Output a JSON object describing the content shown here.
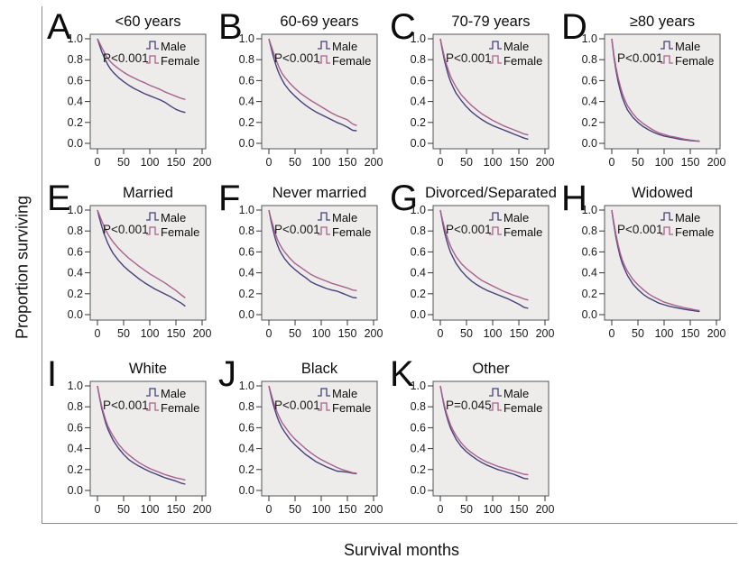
{
  "figure": {
    "ylabel": "Proportion surviving",
    "xlabel": "Survival months",
    "legend": {
      "male_label": "Male",
      "female_label": "Female"
    },
    "colors": {
      "male": "#45427a",
      "female": "#a8618e",
      "plot_bg": "#edecea",
      "plot_border": "#555555",
      "frame": "#8c8c8c",
      "text": "#1a1a1a"
    }
  },
  "chart_data": [
    {
      "type": "line",
      "panel": "A",
      "title": "<60 years",
      "p_value": "P<0.001",
      "xlabel": "Survival months",
      "ylabel": "Proportion surviving",
      "xticks": [
        0,
        50,
        100,
        150,
        200
      ],
      "yticks": [
        1.0,
        0.8,
        0.6,
        0.4,
        0.2,
        0.0
      ],
      "xlim": [
        0,
        207
      ],
      "ylim": [
        0,
        1
      ],
      "legend_position": "top-right",
      "grid": false,
      "x": [
        0,
        4,
        8,
        12,
        16,
        20,
        25,
        30,
        40,
        50,
        60,
        70,
        80,
        90,
        100,
        110,
        120,
        130,
        140,
        150,
        160,
        168
      ],
      "series": [
        {
          "name": "Male",
          "values": [
            1.0,
            0.94,
            0.88,
            0.83,
            0.79,
            0.75,
            0.71,
            0.68,
            0.63,
            0.59,
            0.555,
            0.525,
            0.5,
            0.475,
            0.455,
            0.435,
            0.415,
            0.39,
            0.355,
            0.325,
            0.305,
            0.295
          ]
        },
        {
          "name": "Female",
          "values": [
            1.0,
            0.96,
            0.92,
            0.88,
            0.84,
            0.81,
            0.78,
            0.755,
            0.715,
            0.68,
            0.65,
            0.625,
            0.6,
            0.58,
            0.555,
            0.535,
            0.515,
            0.49,
            0.47,
            0.45,
            0.43,
            0.42
          ]
        }
      ]
    },
    {
      "type": "line",
      "panel": "B",
      "title": "60-69 years",
      "p_value": "P<0.001",
      "xticks": [
        0,
        50,
        100,
        150,
        200
      ],
      "yticks": [
        1.0,
        0.8,
        0.6,
        0.4,
        0.2,
        0.0
      ],
      "xlim": [
        0,
        207
      ],
      "ylim": [
        0,
        1
      ],
      "legend_position": "top-right",
      "grid": false,
      "x": [
        0,
        4,
        8,
        12,
        16,
        20,
        25,
        30,
        40,
        50,
        60,
        70,
        80,
        90,
        100,
        110,
        120,
        130,
        140,
        150,
        160,
        168
      ],
      "series": [
        {
          "name": "Male",
          "values": [
            1.0,
            0.92,
            0.84,
            0.77,
            0.71,
            0.66,
            0.61,
            0.565,
            0.5,
            0.45,
            0.405,
            0.365,
            0.33,
            0.3,
            0.275,
            0.25,
            0.225,
            0.2,
            0.18,
            0.155,
            0.125,
            0.12
          ]
        },
        {
          "name": "Female",
          "values": [
            1.0,
            0.94,
            0.88,
            0.82,
            0.77,
            0.72,
            0.67,
            0.635,
            0.575,
            0.525,
            0.48,
            0.445,
            0.41,
            0.38,
            0.35,
            0.32,
            0.29,
            0.265,
            0.245,
            0.225,
            0.185,
            0.17
          ]
        }
      ]
    },
    {
      "type": "line",
      "panel": "C",
      "title": "70-79 years",
      "p_value": "P<0.001",
      "xticks": [
        0,
        50,
        100,
        150,
        200
      ],
      "yticks": [
        1.0,
        0.8,
        0.6,
        0.4,
        0.2,
        0.0
      ],
      "xlim": [
        0,
        207
      ],
      "ylim": [
        0,
        1
      ],
      "legend_position": "top-right",
      "grid": false,
      "x": [
        0,
        4,
        8,
        12,
        16,
        20,
        25,
        30,
        40,
        50,
        60,
        70,
        80,
        90,
        100,
        110,
        120,
        130,
        140,
        150,
        160,
        168
      ],
      "series": [
        {
          "name": "Male",
          "values": [
            1.0,
            0.89,
            0.79,
            0.71,
            0.64,
            0.585,
            0.53,
            0.48,
            0.41,
            0.35,
            0.3,
            0.26,
            0.225,
            0.195,
            0.17,
            0.15,
            0.13,
            0.11,
            0.09,
            0.07,
            0.05,
            0.04
          ]
        },
        {
          "name": "Female",
          "values": [
            1.0,
            0.91,
            0.82,
            0.75,
            0.69,
            0.635,
            0.585,
            0.54,
            0.465,
            0.41,
            0.36,
            0.32,
            0.28,
            0.25,
            0.22,
            0.195,
            0.17,
            0.15,
            0.13,
            0.11,
            0.09,
            0.08
          ]
        }
      ]
    },
    {
      "type": "line",
      "panel": "D",
      "title": "≥80 years",
      "p_value": "P<0.001",
      "xticks": [
        0,
        50,
        100,
        150,
        200
      ],
      "yticks": [
        1.0,
        0.8,
        0.6,
        0.4,
        0.2,
        0.0
      ],
      "xlim": [
        0,
        207
      ],
      "ylim": [
        0,
        1
      ],
      "legend_position": "top-right",
      "grid": false,
      "x": [
        0,
        4,
        8,
        12,
        16,
        20,
        25,
        30,
        40,
        50,
        60,
        70,
        80,
        90,
        100,
        110,
        120,
        130,
        140,
        150,
        160,
        168
      ],
      "series": [
        {
          "name": "Male",
          "values": [
            1.0,
            0.83,
            0.7,
            0.59,
            0.51,
            0.44,
            0.375,
            0.32,
            0.25,
            0.2,
            0.16,
            0.13,
            0.105,
            0.085,
            0.07,
            0.06,
            0.05,
            0.04,
            0.033,
            0.027,
            0.022,
            0.02
          ]
        },
        {
          "name": "Female",
          "values": [
            1.0,
            0.85,
            0.73,
            0.63,
            0.55,
            0.48,
            0.415,
            0.36,
            0.285,
            0.23,
            0.19,
            0.155,
            0.125,
            0.1,
            0.085,
            0.07,
            0.06,
            0.05,
            0.04,
            0.032,
            0.025,
            0.022
          ]
        }
      ]
    },
    {
      "type": "line",
      "panel": "E",
      "title": "Married",
      "p_value": "P<0.001",
      "xticks": [
        0,
        50,
        100,
        150,
        200
      ],
      "yticks": [
        1.0,
        0.8,
        0.6,
        0.4,
        0.2,
        0.0
      ],
      "xlim": [
        0,
        207
      ],
      "ylim": [
        0,
        1
      ],
      "legend_position": "top-right",
      "grid": false,
      "x": [
        0,
        4,
        8,
        12,
        16,
        20,
        25,
        30,
        40,
        50,
        60,
        70,
        80,
        90,
        100,
        110,
        120,
        130,
        140,
        150,
        160,
        168
      ],
      "series": [
        {
          "name": "Male",
          "values": [
            1.0,
            0.92,
            0.85,
            0.78,
            0.73,
            0.68,
            0.63,
            0.585,
            0.52,
            0.465,
            0.42,
            0.38,
            0.34,
            0.305,
            0.275,
            0.245,
            0.22,
            0.195,
            0.17,
            0.14,
            0.11,
            0.08
          ]
        },
        {
          "name": "Female",
          "values": [
            1.0,
            0.95,
            0.9,
            0.85,
            0.81,
            0.77,
            0.73,
            0.695,
            0.635,
            0.585,
            0.54,
            0.5,
            0.46,
            0.425,
            0.39,
            0.36,
            0.33,
            0.3,
            0.265,
            0.23,
            0.19,
            0.16
          ]
        }
      ]
    },
    {
      "type": "line",
      "panel": "F",
      "title": "Never married",
      "p_value": "P<0.001",
      "xticks": [
        0,
        50,
        100,
        150,
        200
      ],
      "yticks": [
        1.0,
        0.8,
        0.6,
        0.4,
        0.2,
        0.0
      ],
      "xlim": [
        0,
        207
      ],
      "ylim": [
        0,
        1
      ],
      "legend_position": "top-right",
      "grid": false,
      "x": [
        0,
        4,
        8,
        12,
        16,
        20,
        25,
        30,
        40,
        50,
        60,
        70,
        80,
        90,
        100,
        110,
        120,
        130,
        140,
        150,
        160,
        168
      ],
      "series": [
        {
          "name": "Male",
          "values": [
            1.0,
            0.9,
            0.81,
            0.73,
            0.67,
            0.62,
            0.575,
            0.535,
            0.475,
            0.43,
            0.39,
            0.355,
            0.315,
            0.29,
            0.27,
            0.25,
            0.235,
            0.225,
            0.205,
            0.185,
            0.165,
            0.16
          ]
        },
        {
          "name": "Female",
          "values": [
            1.0,
            0.92,
            0.85,
            0.78,
            0.72,
            0.68,
            0.635,
            0.6,
            0.54,
            0.49,
            0.455,
            0.42,
            0.385,
            0.36,
            0.34,
            0.32,
            0.3,
            0.285,
            0.27,
            0.255,
            0.235,
            0.23
          ]
        }
      ]
    },
    {
      "type": "line",
      "panel": "G",
      "title": "Divorced/Separated",
      "p_value": "P<0.001",
      "xticks": [
        0,
        50,
        100,
        150,
        200
      ],
      "yticks": [
        1.0,
        0.8,
        0.6,
        0.4,
        0.2,
        0.0
      ],
      "xlim": [
        0,
        207
      ],
      "ylim": [
        0,
        1
      ],
      "legend_position": "top-right",
      "grid": false,
      "x": [
        0,
        4,
        8,
        12,
        16,
        20,
        25,
        30,
        40,
        50,
        60,
        70,
        80,
        90,
        100,
        110,
        120,
        130,
        140,
        150,
        160,
        168
      ],
      "series": [
        {
          "name": "Male",
          "values": [
            1.0,
            0.89,
            0.79,
            0.71,
            0.645,
            0.59,
            0.54,
            0.49,
            0.42,
            0.365,
            0.32,
            0.285,
            0.255,
            0.23,
            0.21,
            0.19,
            0.17,
            0.15,
            0.125,
            0.1,
            0.07,
            0.06
          ]
        },
        {
          "name": "Female",
          "values": [
            1.0,
            0.91,
            0.83,
            0.76,
            0.7,
            0.65,
            0.6,
            0.555,
            0.49,
            0.44,
            0.4,
            0.36,
            0.325,
            0.3,
            0.275,
            0.25,
            0.225,
            0.205,
            0.185,
            0.17,
            0.15,
            0.14
          ]
        }
      ]
    },
    {
      "type": "line",
      "panel": "H",
      "title": "Widowed",
      "p_value": "P<0.001",
      "xticks": [
        0,
        50,
        100,
        150,
        200
      ],
      "yticks": [
        1.0,
        0.8,
        0.6,
        0.4,
        0.2,
        0.0
      ],
      "xlim": [
        0,
        207
      ],
      "ylim": [
        0,
        1
      ],
      "legend_position": "top-right",
      "grid": false,
      "x": [
        0,
        4,
        8,
        12,
        16,
        20,
        25,
        30,
        40,
        50,
        60,
        70,
        80,
        90,
        100,
        110,
        120,
        130,
        140,
        150,
        160,
        168
      ],
      "series": [
        {
          "name": "Male",
          "values": [
            1.0,
            0.86,
            0.74,
            0.64,
            0.555,
            0.49,
            0.43,
            0.375,
            0.295,
            0.24,
            0.195,
            0.16,
            0.135,
            0.11,
            0.095,
            0.08,
            0.07,
            0.06,
            0.05,
            0.042,
            0.035,
            0.03
          ]
        },
        {
          "name": "Female",
          "values": [
            1.0,
            0.88,
            0.77,
            0.67,
            0.59,
            0.525,
            0.465,
            0.415,
            0.34,
            0.285,
            0.24,
            0.2,
            0.17,
            0.145,
            0.12,
            0.105,
            0.09,
            0.078,
            0.065,
            0.055,
            0.045,
            0.04
          ]
        }
      ]
    },
    {
      "type": "line",
      "panel": "I",
      "title": "White",
      "p_value": "P<0.001",
      "xticks": [
        0,
        50,
        100,
        150,
        200
      ],
      "yticks": [
        1.0,
        0.8,
        0.6,
        0.4,
        0.2,
        0.0
      ],
      "xlim": [
        0,
        207
      ],
      "ylim": [
        0,
        1
      ],
      "legend_position": "top-right",
      "grid": false,
      "x": [
        0,
        4,
        8,
        12,
        16,
        20,
        25,
        30,
        40,
        50,
        60,
        70,
        80,
        90,
        100,
        110,
        120,
        130,
        140,
        150,
        160,
        168
      ],
      "series": [
        {
          "name": "Male",
          "values": [
            1.0,
            0.89,
            0.79,
            0.71,
            0.64,
            0.585,
            0.53,
            0.48,
            0.405,
            0.345,
            0.295,
            0.26,
            0.23,
            0.205,
            0.18,
            0.16,
            0.14,
            0.12,
            0.105,
            0.09,
            0.07,
            0.06
          ]
        },
        {
          "name": "Female",
          "values": [
            1.0,
            0.9,
            0.81,
            0.735,
            0.67,
            0.615,
            0.565,
            0.52,
            0.445,
            0.385,
            0.34,
            0.3,
            0.265,
            0.235,
            0.21,
            0.19,
            0.17,
            0.15,
            0.135,
            0.12,
            0.11,
            0.1
          ]
        }
      ]
    },
    {
      "type": "line",
      "panel": "J",
      "title": "Black",
      "p_value": "P<0.001",
      "xticks": [
        0,
        50,
        100,
        150,
        200
      ],
      "yticks": [
        1.0,
        0.8,
        0.6,
        0.4,
        0.2,
        0.0
      ],
      "xlim": [
        0,
        207
      ],
      "ylim": [
        0,
        1
      ],
      "legend_position": "top-right",
      "grid": false,
      "x": [
        0,
        4,
        8,
        12,
        16,
        20,
        25,
        30,
        40,
        50,
        60,
        70,
        80,
        90,
        100,
        110,
        120,
        130,
        140,
        150,
        160,
        168
      ],
      "series": [
        {
          "name": "Male",
          "values": [
            1.0,
            0.91,
            0.83,
            0.76,
            0.7,
            0.65,
            0.6,
            0.56,
            0.49,
            0.435,
            0.39,
            0.345,
            0.31,
            0.275,
            0.25,
            0.225,
            0.205,
            0.185,
            0.18,
            0.175,
            0.165,
            0.16
          ]
        },
        {
          "name": "Female",
          "values": [
            1.0,
            0.93,
            0.86,
            0.8,
            0.745,
            0.7,
            0.65,
            0.615,
            0.545,
            0.49,
            0.445,
            0.4,
            0.36,
            0.325,
            0.295,
            0.27,
            0.245,
            0.22,
            0.2,
            0.185,
            0.17,
            0.165
          ]
        }
      ]
    },
    {
      "type": "line",
      "panel": "K",
      "title": "Other",
      "p_value": "P=0.045",
      "xticks": [
        0,
        50,
        100,
        150,
        200
      ],
      "yticks": [
        1.0,
        0.8,
        0.6,
        0.4,
        0.2,
        0.0
      ],
      "xlim": [
        0,
        207
      ],
      "ylim": [
        0,
        1
      ],
      "legend_position": "top-right",
      "grid": false,
      "x": [
        0,
        4,
        8,
        12,
        16,
        20,
        25,
        30,
        40,
        50,
        60,
        70,
        80,
        90,
        100,
        110,
        120,
        130,
        140,
        150,
        160,
        168
      ],
      "series": [
        {
          "name": "Male",
          "values": [
            1.0,
            0.89,
            0.79,
            0.71,
            0.645,
            0.59,
            0.54,
            0.49,
            0.42,
            0.37,
            0.33,
            0.295,
            0.265,
            0.24,
            0.22,
            0.2,
            0.185,
            0.17,
            0.155,
            0.135,
            0.115,
            0.11
          ]
        },
        {
          "name": "Female",
          "values": [
            1.0,
            0.9,
            0.81,
            0.735,
            0.675,
            0.62,
            0.57,
            0.525,
            0.455,
            0.4,
            0.36,
            0.325,
            0.295,
            0.27,
            0.25,
            0.23,
            0.215,
            0.2,
            0.185,
            0.17,
            0.155,
            0.15
          ]
        }
      ]
    }
  ]
}
